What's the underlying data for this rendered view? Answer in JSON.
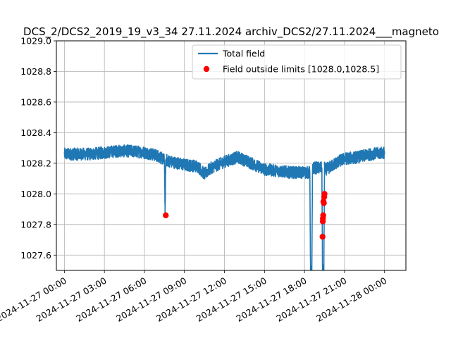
{
  "chart_data": {
    "type": "line",
    "title": "DCS_2/DCS2_2019_19_v3_34 27.11.2024 archiv_DCS2/27.11.2024___magneto",
    "xlabel": "",
    "ylabel": "",
    "x_unit": "hours since 2024-11-27 00:00",
    "xlim": [
      -0.6,
      25.6
    ],
    "ylim": [
      1027.5,
      1029.0
    ],
    "grid": true,
    "legend_position": "top-right",
    "x_ticks": [
      0,
      3,
      6,
      9,
      12,
      15,
      18,
      21,
      24
    ],
    "x_tick_labels": [
      "2024-11-27 00:00",
      "2024-11-27 03:00",
      "2024-11-27 06:00",
      "2024-11-27 09:00",
      "2024-11-27 12:00",
      "2024-11-27 15:00",
      "2024-11-27 18:00",
      "2024-11-27 21:00",
      "2024-11-28 00:00"
    ],
    "y_ticks": [
      1027.6,
      1027.8,
      1028.0,
      1028.2,
      1028.4,
      1028.6,
      1028.8,
      1029.0
    ],
    "y_tick_labels": [
      "1027.6",
      "1027.8",
      "1028.0",
      "1028.2",
      "1028.4",
      "1028.6",
      "1028.8",
      "1029.0"
    ],
    "series": [
      {
        "name": "Total field",
        "color": "#1f77b4",
        "kind": "line",
        "noise_amplitude": 0.04,
        "x": [
          0,
          1,
          2,
          3,
          4,
          5,
          6,
          7,
          7.5,
          7.55,
          7.6,
          7.65,
          8,
          9,
          10,
          10.5,
          11,
          12,
          13,
          14,
          15,
          16,
          17,
          18,
          18.4,
          18.45,
          18.5,
          18.55,
          18.6,
          18.65,
          19.3,
          19.35,
          19.4,
          19.45,
          19.5,
          19.6,
          20,
          20.5,
          21,
          22,
          23,
          24
        ],
        "y": [
          1028.26,
          1028.26,
          1028.26,
          1028.27,
          1028.28,
          1028.28,
          1028.27,
          1028.25,
          1028.22,
          1027.86,
          1028.22,
          1028.22,
          1028.21,
          1028.19,
          1028.18,
          1028.13,
          1028.17,
          1028.21,
          1028.24,
          1028.2,
          1028.16,
          1028.15,
          1028.14,
          1028.14,
          1028.14,
          1027.5,
          1027.5,
          1027.5,
          1028.16,
          1028.17,
          1028.17,
          1027.5,
          1027.5,
          1027.5,
          1028.17,
          1028.16,
          1028.18,
          1028.21,
          1028.23,
          1028.24,
          1028.26,
          1028.27
        ]
      },
      {
        "name": "Field outside limits [1028.0,1028.5]",
        "color": "#ff0000",
        "kind": "scatter",
        "x": [
          7.6,
          19.35,
          19.37,
          19.38,
          19.4,
          19.42,
          19.45,
          19.48,
          19.5
        ],
        "y": [
          1027.86,
          1027.72,
          1027.82,
          1027.84,
          1027.86,
          1027.95,
          1027.94,
          1027.98,
          1028.0
        ]
      }
    ]
  }
}
